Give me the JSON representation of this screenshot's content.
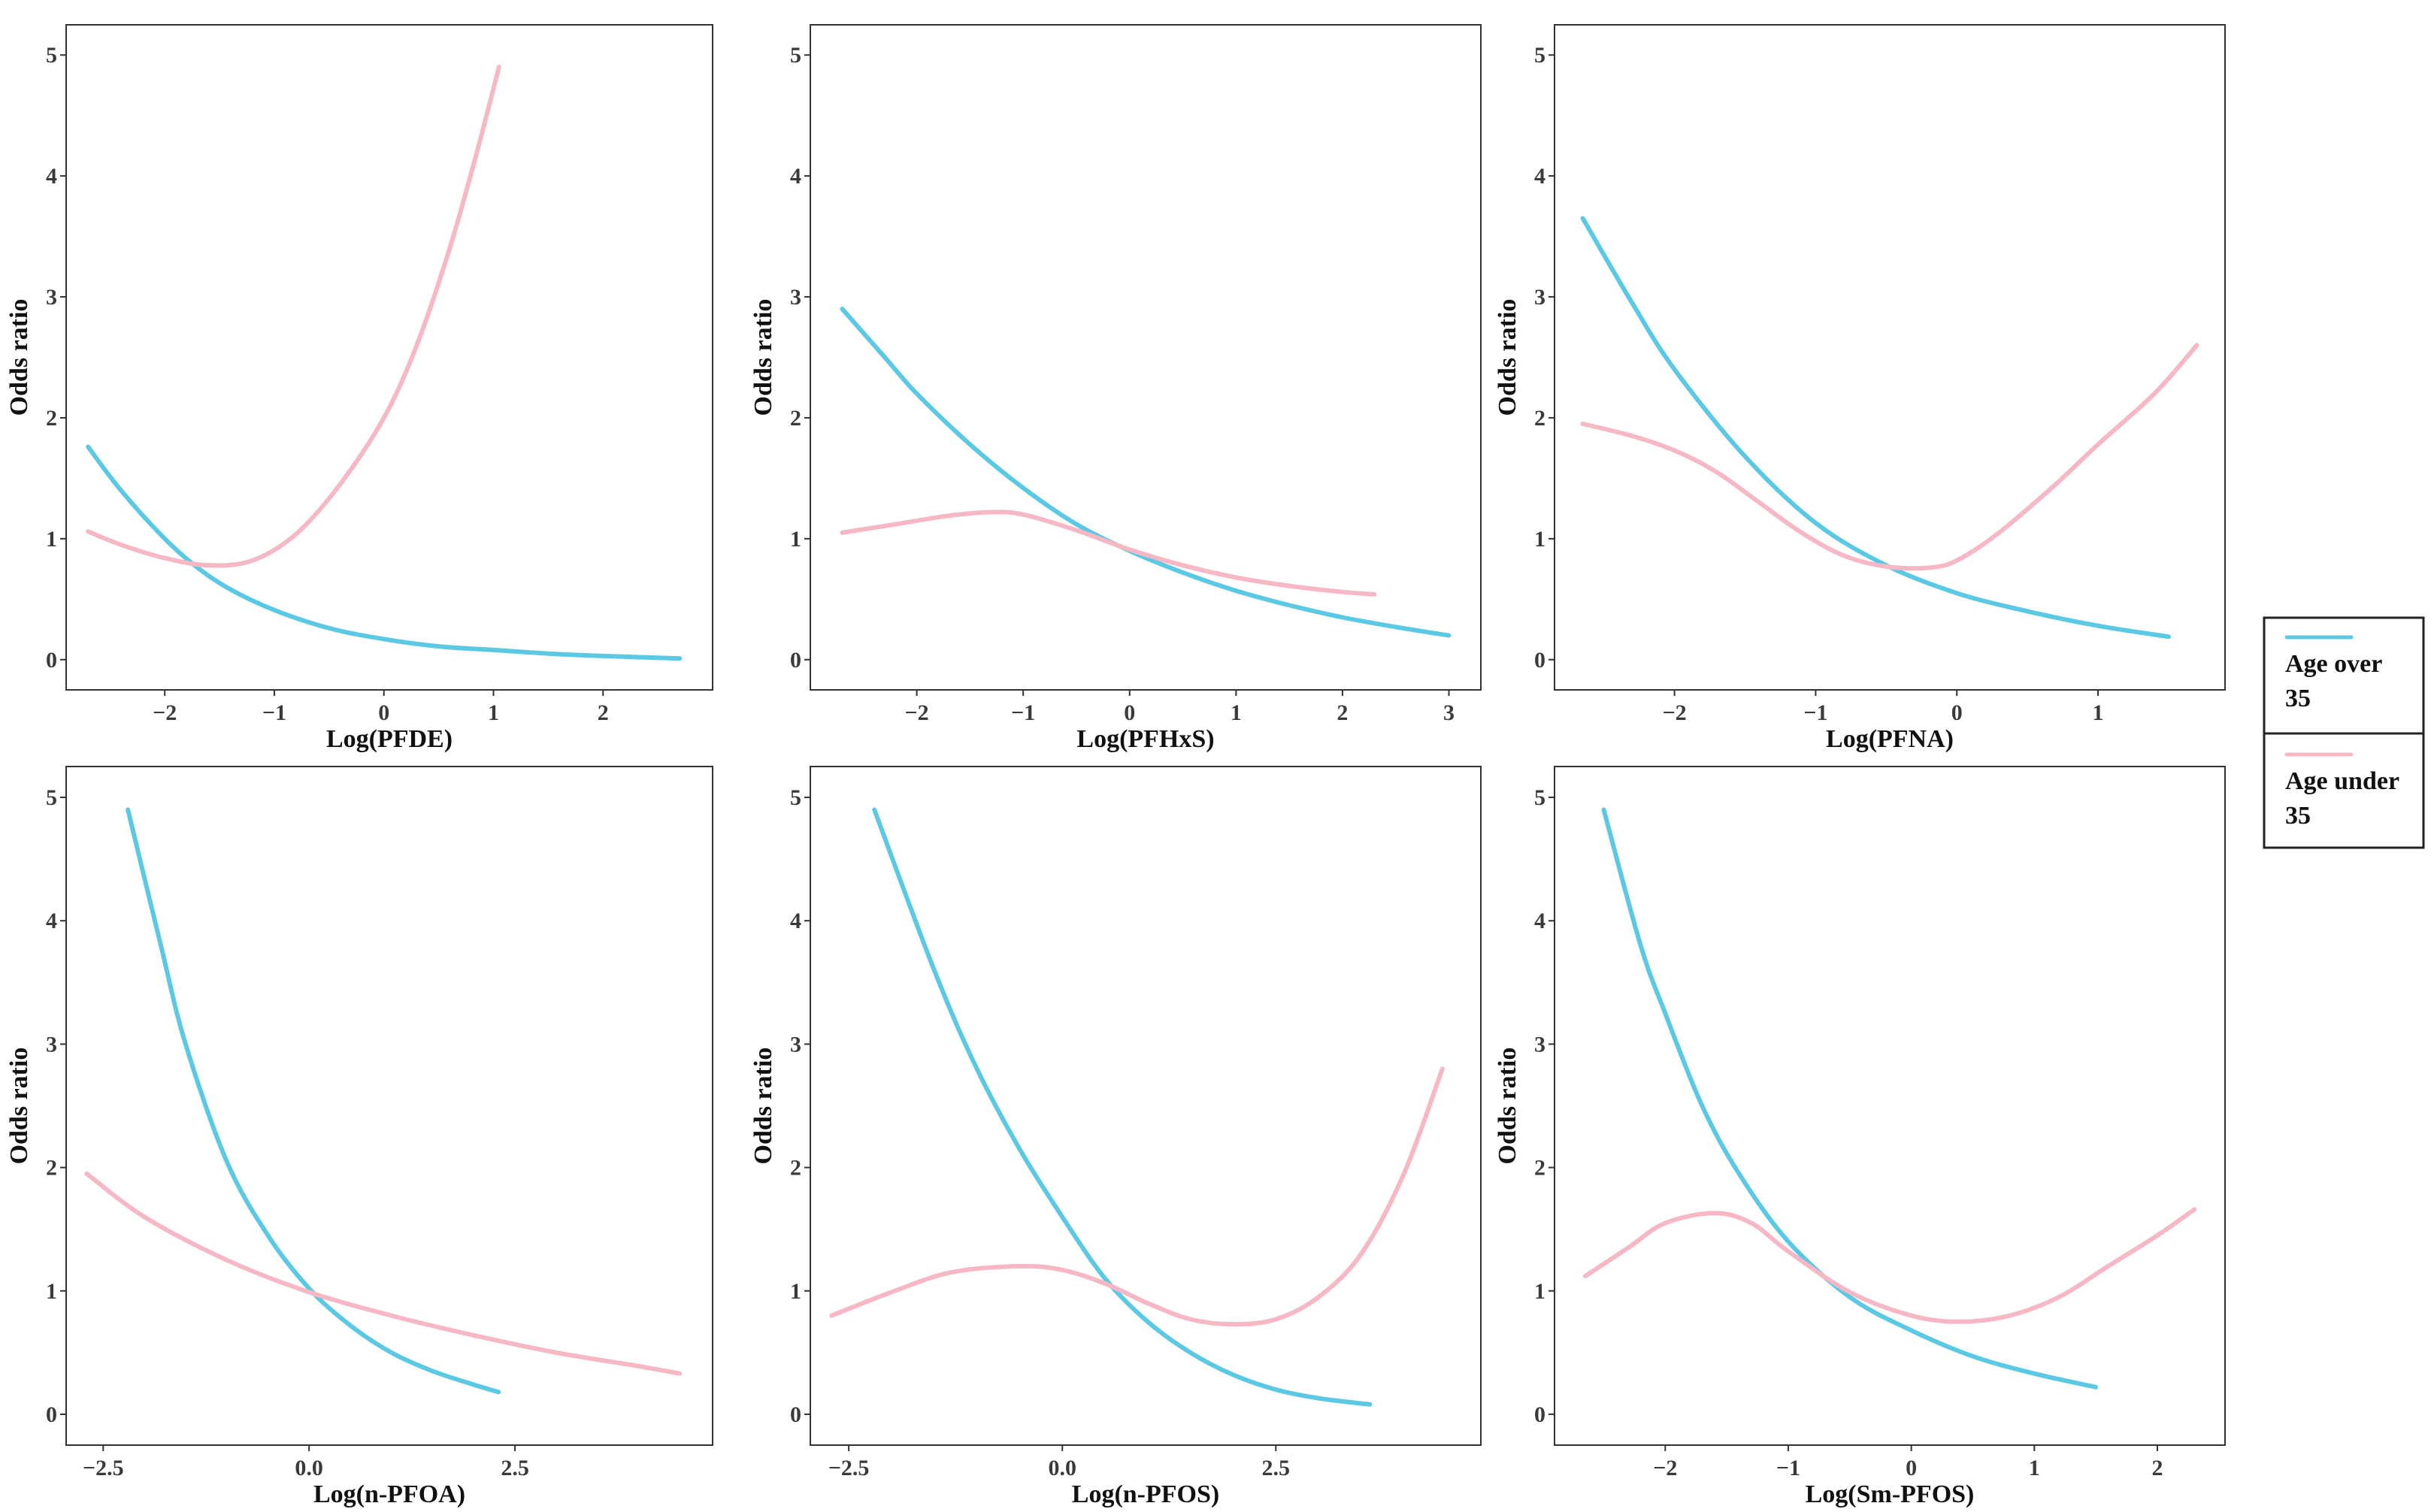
{
  "figure": {
    "legend": {
      "entries": [
        {
          "label_line1": "Age over",
          "label_line2": "35",
          "color": "#5bc8e4"
        },
        {
          "label_line1": "Age under",
          "label_line2": "35",
          "color": "#f7b8c6"
        }
      ]
    }
  },
  "chart_data": [
    {
      "type": "line",
      "xlabel": "Log(PFDE)",
      "ylabel": "Odds ratio",
      "xlim": [
        -2.9,
        3.0
      ],
      "ylim": [
        -0.25,
        5.25
      ],
      "xticks": [
        -2,
        -1,
        0,
        1,
        2
      ],
      "xtick_labels": [
        "−2",
        "−1",
        "0",
        "1",
        "2"
      ],
      "yticks": [
        0,
        1,
        2,
        3,
        4,
        5
      ],
      "ytick_labels": [
        "0",
        "1",
        "2",
        "3",
        "4",
        "5"
      ],
      "series": [
        {
          "name": "Age over 35",
          "color": "#5bc8e4",
          "x": [
            -2.7,
            -2.4,
            -2.0,
            -1.7,
            -1.4,
            -1.0,
            -0.5,
            0.0,
            0.5,
            1.0,
            1.5,
            2.0,
            2.7
          ],
          "y": [
            1.76,
            1.4,
            1.0,
            0.76,
            0.58,
            0.41,
            0.26,
            0.17,
            0.11,
            0.08,
            0.05,
            0.03,
            0.01
          ]
        },
        {
          "name": "Age under 35",
          "color": "#f7b8c6",
          "x": [
            -2.7,
            -2.4,
            -2.0,
            -1.6,
            -1.2,
            -0.8,
            -0.4,
            0.0,
            0.3,
            0.6,
            0.85,
            1.05
          ],
          "y": [
            1.06,
            0.95,
            0.84,
            0.78,
            0.82,
            1.04,
            1.45,
            2.0,
            2.6,
            3.4,
            4.2,
            4.9
          ]
        }
      ]
    },
    {
      "type": "line",
      "xlabel": "Log(PFHxS)",
      "ylabel": "Odds ratio",
      "xlim": [
        -3.0,
        3.3
      ],
      "ylim": [
        -0.25,
        5.25
      ],
      "xticks": [
        -2,
        -1,
        0,
        1,
        2,
        3
      ],
      "xtick_labels": [
        "−2",
        "−1",
        "0",
        "1",
        "2",
        "3"
      ],
      "yticks": [
        0,
        1,
        2,
        3,
        4,
        5
      ],
      "ytick_labels": [
        "0",
        "1",
        "2",
        "3",
        "4",
        "5"
      ],
      "series": [
        {
          "name": "Age over 35",
          "color": "#5bc8e4",
          "x": [
            -2.7,
            -2.3,
            -2.0,
            -1.5,
            -1.0,
            -0.5,
            0.0,
            0.5,
            1.0,
            1.5,
            2.0,
            2.5,
            3.0
          ],
          "y": [
            2.9,
            2.5,
            2.2,
            1.78,
            1.42,
            1.12,
            0.9,
            0.72,
            0.57,
            0.45,
            0.35,
            0.27,
            0.2
          ]
        },
        {
          "name": "Age under 35",
          "color": "#f7b8c6",
          "x": [
            -2.7,
            -2.2,
            -1.7,
            -1.3,
            -1.0,
            -0.5,
            0.0,
            0.5,
            1.0,
            1.5,
            2.0,
            2.3
          ],
          "y": [
            1.05,
            1.12,
            1.19,
            1.22,
            1.2,
            1.07,
            0.91,
            0.78,
            0.68,
            0.61,
            0.56,
            0.54
          ]
        }
      ]
    },
    {
      "type": "line",
      "xlabel": "Log(PFNA)",
      "ylabel": "Odds ratio",
      "xlim": [
        -2.85,
        1.9
      ],
      "ylim": [
        -0.25,
        5.25
      ],
      "xticks": [
        -2,
        -1,
        0,
        1
      ],
      "xtick_labels": [
        "−2",
        "−1",
        "0",
        "1"
      ],
      "yticks": [
        0,
        1,
        2,
        3,
        4,
        5
      ],
      "ytick_labels": [
        "0",
        "1",
        "2",
        "3",
        "4",
        "5"
      ],
      "series": [
        {
          "name": "Age over 35",
          "color": "#5bc8e4",
          "x": [
            -2.65,
            -2.3,
            -2.0,
            -1.5,
            -1.0,
            -0.5,
            0.0,
            0.5,
            1.0,
            1.5
          ],
          "y": [
            3.65,
            2.95,
            2.4,
            1.68,
            1.13,
            0.78,
            0.55,
            0.4,
            0.28,
            0.19
          ]
        },
        {
          "name": "Age under 35",
          "color": "#f7b8c6",
          "x": [
            -2.65,
            -2.3,
            -2.0,
            -1.7,
            -1.4,
            -1.1,
            -0.8,
            -0.5,
            -0.2,
            0.0,
            0.3,
            0.7,
            1.0,
            1.4,
            1.7
          ],
          "y": [
            1.95,
            1.85,
            1.73,
            1.55,
            1.3,
            1.05,
            0.86,
            0.77,
            0.76,
            0.82,
            1.05,
            1.45,
            1.78,
            2.2,
            2.6
          ]
        }
      ]
    },
    {
      "type": "line",
      "xlabel": "Log(n-PFOA)",
      "ylabel": "Odds ratio",
      "xlim": [
        -2.95,
        4.9
      ],
      "ylim": [
        -0.25,
        5.25
      ],
      "xticks": [
        -2.5,
        0.0,
        2.5
      ],
      "xtick_labels": [
        "−2.5",
        "0.0",
        "2.5"
      ],
      "yticks": [
        0,
        1,
        2,
        3,
        4,
        5
      ],
      "ytick_labels": [
        "0",
        "1",
        "2",
        "3",
        "4",
        "5"
      ],
      "series": [
        {
          "name": "Age over 35",
          "color": "#5bc8e4",
          "x": [
            -2.2,
            -1.8,
            -1.5,
            -1.0,
            -0.5,
            0.0,
            0.5,
            1.0,
            1.5,
            2.0,
            2.3
          ],
          "y": [
            4.9,
            3.8,
            3.0,
            2.05,
            1.45,
            1.02,
            0.72,
            0.5,
            0.35,
            0.24,
            0.18
          ]
        },
        {
          "name": "Age under 35",
          "color": "#f7b8c6",
          "x": [
            -2.7,
            -2.0,
            -1.0,
            0.0,
            1.0,
            2.0,
            3.0,
            4.0,
            4.5
          ],
          "y": [
            1.95,
            1.6,
            1.25,
            0.99,
            0.8,
            0.64,
            0.5,
            0.39,
            0.33
          ]
        }
      ]
    },
    {
      "type": "line",
      "xlabel": "Log(n-PFOS)",
      "ylabel": "Odds ratio",
      "xlim": [
        -2.95,
        4.9
      ],
      "ylim": [
        -0.25,
        5.25
      ],
      "xticks": [
        -2.5,
        0.0,
        2.5
      ],
      "xtick_labels": [
        "−2.5",
        "0.0",
        "2.5"
      ],
      "yticks": [
        0,
        1,
        2,
        3,
        4,
        5
      ],
      "ytick_labels": [
        "0",
        "1",
        "2",
        "3",
        "4",
        "5"
      ],
      "series": [
        {
          "name": "Age over 35",
          "color": "#5bc8e4",
          "x": [
            -2.2,
            -1.5,
            -1.0,
            -0.5,
            0.0,
            0.5,
            1.0,
            1.5,
            2.0,
            2.5,
            3.0,
            3.6
          ],
          "y": [
            4.9,
            3.6,
            2.8,
            2.15,
            1.6,
            1.1,
            0.75,
            0.5,
            0.32,
            0.2,
            0.13,
            0.08
          ]
        },
        {
          "name": "Age under 35",
          "color": "#f7b8c6",
          "x": [
            -2.7,
            -2.0,
            -1.3,
            -0.5,
            0.0,
            0.5,
            1.0,
            1.5,
            2.0,
            2.5,
            3.0,
            3.5,
            4.0,
            4.45
          ],
          "y": [
            0.8,
            0.99,
            1.15,
            1.2,
            1.17,
            1.06,
            0.9,
            0.77,
            0.73,
            0.77,
            0.95,
            1.3,
            1.95,
            2.8
          ]
        }
      ]
    },
    {
      "type": "line",
      "xlabel": "Log(Sm-PFOS)",
      "ylabel": "Odds ratio",
      "xlim": [
        -2.9,
        2.55
      ],
      "ylim": [
        -0.25,
        5.25
      ],
      "xticks": [
        -2,
        -1,
        0,
        1,
        2
      ],
      "xtick_labels": [
        "−2",
        "−1",
        "0",
        "1",
        "2"
      ],
      "yticks": [
        0,
        1,
        2,
        3,
        4,
        5
      ],
      "ytick_labels": [
        "0",
        "1",
        "2",
        "3",
        "4",
        "5"
      ],
      "series": [
        {
          "name": "Age over 35",
          "color": "#5bc8e4",
          "x": [
            -2.5,
            -2.2,
            -2.0,
            -1.7,
            -1.4,
            -1.0,
            -0.5,
            0.0,
            0.5,
            1.0,
            1.5
          ],
          "y": [
            4.9,
            3.8,
            3.25,
            2.5,
            1.95,
            1.4,
            0.95,
            0.68,
            0.47,
            0.33,
            0.22
          ]
        },
        {
          "name": "Age under 35",
          "color": "#f7b8c6",
          "x": [
            -2.65,
            -2.3,
            -2.0,
            -1.6,
            -1.3,
            -1.0,
            -0.5,
            0.0,
            0.4,
            0.8,
            1.2,
            1.6,
            2.0,
            2.3
          ],
          "y": [
            1.12,
            1.35,
            1.55,
            1.63,
            1.55,
            1.32,
            0.99,
            0.8,
            0.75,
            0.8,
            0.95,
            1.2,
            1.45,
            1.66
          ]
        }
      ]
    }
  ]
}
